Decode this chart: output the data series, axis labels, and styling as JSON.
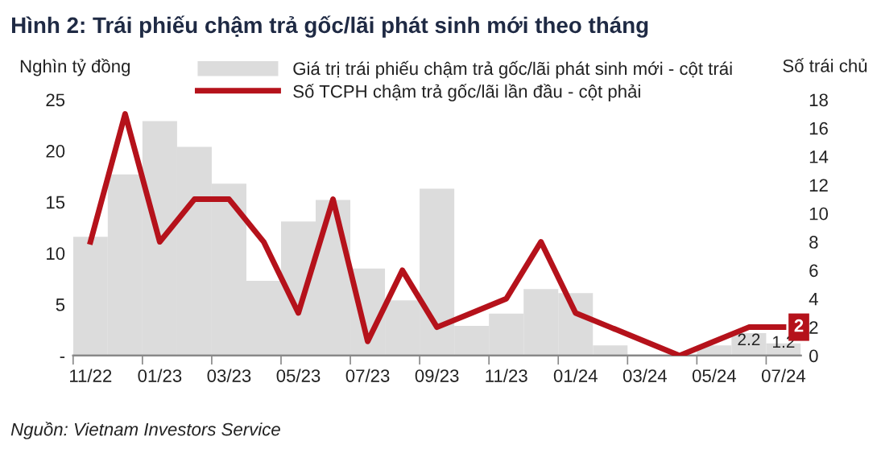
{
  "chart_data": {
    "type": "bar",
    "title": "Hình 2: Trái phiếu chậm trả gốc/lãi phát sinh mới theo tháng",
    "ylabel": "Nghìn tỷ đồng",
    "y2label": "Số trái chủ",
    "annotations": [
      "Nguồn: Vietnam Investors Service"
    ],
    "categories": [
      "11/22",
      null,
      "01/23",
      null,
      "03/23",
      null,
      "05/23",
      null,
      "07/23",
      null,
      "09/23",
      null,
      "11/23",
      null,
      "01/24",
      null,
      "03/24",
      null,
      "05/24",
      null,
      "07/24"
    ],
    "series": [
      {
        "name": "Giá trị trái phiếu chậm trả gốc/lãi phát sinh mới - cột trái",
        "color": "#dcdcdc",
        "values": [
          11.6,
          17.7,
          22.9,
          20.4,
          16.8,
          7.3,
          13.1,
          15.2,
          8.5,
          5.4,
          16.3,
          2.9,
          4.1,
          6.5,
          6.1,
          1.0,
          0.1,
          0,
          1.0,
          2.2,
          1.2
        ],
        "value_labels": [
          null,
          null,
          null,
          null,
          null,
          null,
          null,
          null,
          null,
          null,
          null,
          null,
          null,
          null,
          null,
          null,
          null,
          null,
          null,
          "2.2",
          "1.2"
        ]
      },
      {
        "name": "Số TCPH chậm trả gốc/lãi lần đầu - cột phải",
        "type": "line",
        "axis": "y2",
        "color": "#b5121b",
        "values": [
          8,
          17,
          8,
          11,
          11,
          8,
          3,
          11,
          1,
          6,
          2,
          3,
          4,
          8,
          3,
          2,
          1,
          0,
          1,
          2,
          2
        ],
        "value_labels": [
          null,
          null,
          null,
          null,
          null,
          null,
          null,
          null,
          null,
          null,
          null,
          null,
          null,
          null,
          null,
          null,
          null,
          null,
          null,
          null,
          "2"
        ]
      }
    ],
    "ylim": [
      0,
      25
    ],
    "yticks": [
      {
        "value": 0,
        "label": "-"
      },
      5,
      10,
      15,
      20,
      25
    ],
    "y2lim": [
      0,
      18
    ],
    "y2ticks": [
      0,
      2,
      4,
      6,
      8,
      10,
      12,
      14,
      16,
      18
    ],
    "grid": false,
    "legend": "top right",
    "marker": "none",
    "line_style": "solid"
  }
}
